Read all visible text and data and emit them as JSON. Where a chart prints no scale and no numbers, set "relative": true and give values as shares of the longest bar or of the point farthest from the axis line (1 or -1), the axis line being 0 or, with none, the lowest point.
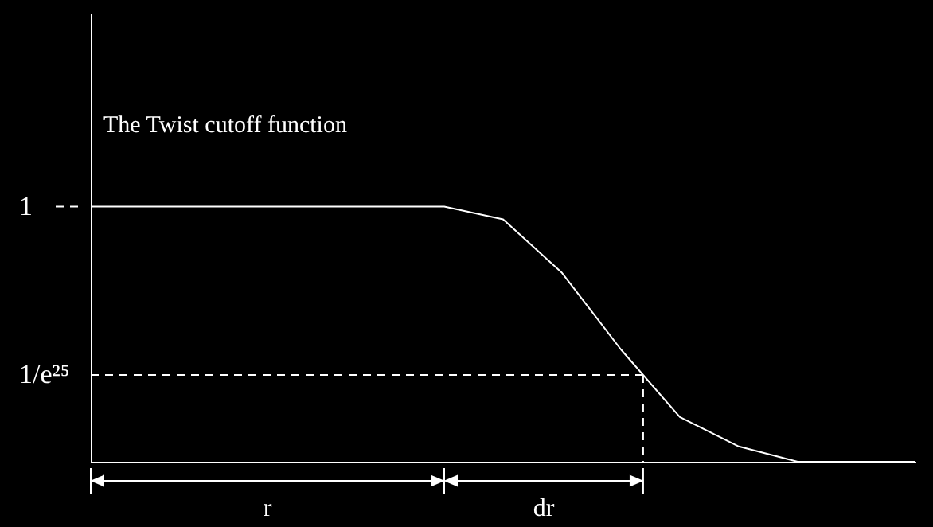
{
  "chart_data": {
    "type": "line",
    "title": "The Twist cutoff function",
    "relative": true,
    "categories": [
      null,
      null,
      null,
      null,
      null,
      null,
      null,
      null,
      null,
      null,
      null,
      null,
      null,
      null,
      null
    ],
    "series": [
      {
        "color": "#ffffff",
        "values": [
          1,
          1,
          1,
          1,
          1,
          1,
          1,
          0.95,
          0.74,
          0.44,
          0.175,
          0.06,
          0,
          0,
          0
        ]
      }
    ],
    "ref_lines": [
      {
        "axis": "y",
        "value": 1,
        "label": "1",
        "color": "#ffffff",
        "line_style": "dashed"
      },
      {
        "axis": "y",
        "value": 0.34,
        "label": "1/e²⁵",
        "color": "#ffffff",
        "line_style": "dashed"
      }
    ],
    "annotations": [
      "r",
      "dr"
    ],
    "grid": false,
    "marker": "none",
    "line_style": "solid"
  }
}
